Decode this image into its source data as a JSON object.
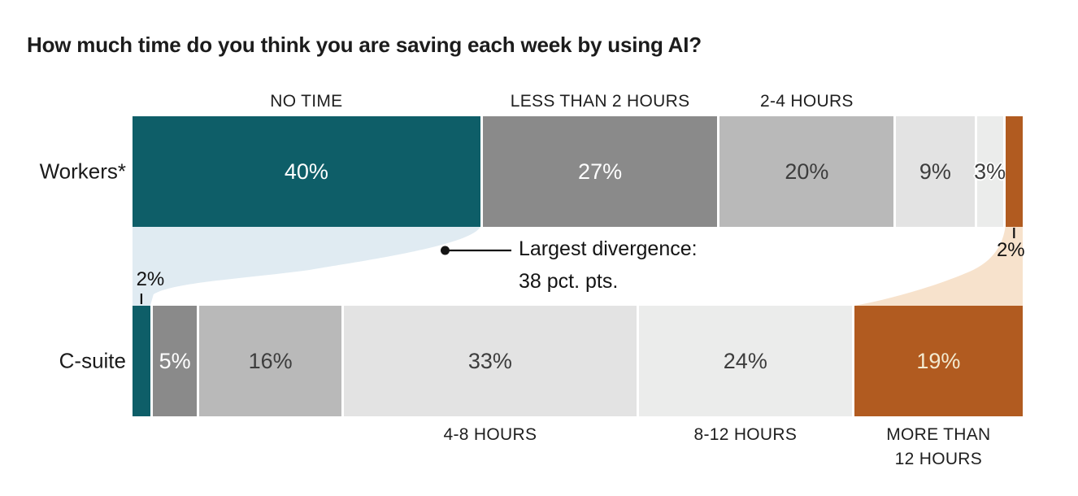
{
  "title": "How much time do you think you are saving each week by using AI?",
  "colors": {
    "background": "#ffffff",
    "text_dark": "#1a1a1a",
    "annotation_ink": "#141414"
  },
  "chart_data": {
    "type": "bar",
    "variant": "horizontal-stacked-with-flows",
    "unit": "%",
    "categories": [
      "NO TIME",
      "LESS THAN 2 HOURS",
      "2-4 HOURS",
      "4-8 HOURS",
      "8-12 HOURS",
      "MORE THAN 12 HOURS"
    ],
    "category_colors": [
      "#0e5e68",
      "#8a8a8a",
      "#b9b9b9",
      "#e3e3e3",
      "#ebeceb",
      "#b15b20"
    ],
    "category_text_colors": [
      "#ffffff",
      "#ffffff",
      "#3d3d3d",
      "#3d3d3d",
      "#3d3d3d",
      "#f3ead0"
    ],
    "series": [
      {
        "name": "Workers*",
        "values": [
          40,
          27,
          20,
          9,
          3,
          2
        ],
        "labels": [
          "40%",
          "27%",
          "20%",
          "9%",
          "3%",
          "2%"
        ],
        "outside_label_index": 5,
        "outside_label_side": "below",
        "halo_label_index": 4
      },
      {
        "name": "C-suite",
        "values": [
          2,
          5,
          16,
          33,
          24,
          19
        ],
        "labels": [
          "2%",
          "5%",
          "16%",
          "33%",
          "24%",
          "19%"
        ],
        "outside_label_index": 0,
        "outside_label_side": "above",
        "halo_label_index": null
      }
    ],
    "top_axis_labels": [
      {
        "category_index": 0,
        "text": "NO TIME"
      },
      {
        "category_index": 1,
        "text": "LESS THAN 2 HOURS"
      },
      {
        "category_index": 2,
        "text": "2-4 HOURS"
      }
    ],
    "bottom_axis_labels": [
      {
        "category_index": 3,
        "lines": [
          "4-8 HOURS"
        ]
      },
      {
        "category_index": 4,
        "lines": [
          "8-12 HOURS"
        ]
      },
      {
        "category_index": 5,
        "lines": [
          "MORE THAN",
          "12 HOURS"
        ]
      }
    ],
    "flows": [
      {
        "from_series": 0,
        "to_series": 1,
        "category_index": 0,
        "color": "#e0ebf2"
      },
      {
        "from_series": 0,
        "to_series": 1,
        "category_index": 5,
        "color": "#f7e2cc"
      }
    ],
    "annotation": {
      "line1": "Largest divergence:",
      "line2": "38 pct. pts."
    }
  }
}
